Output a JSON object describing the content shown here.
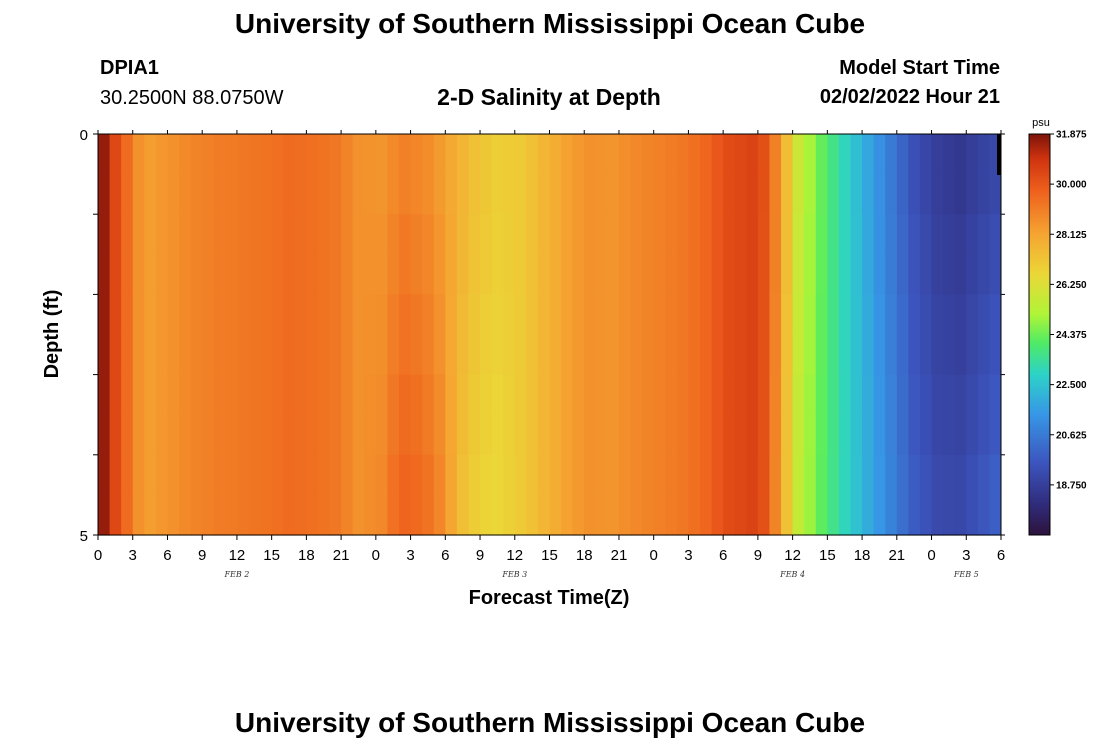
{
  "header": {
    "title": "University of Southern Mississippi Ocean Cube",
    "station_id": "DPIA1",
    "station_coords": "30.2500N  88.0750W",
    "plot_title": "2-D Salinity at Depth",
    "model_start_label": "Model Start Time",
    "model_start_value": "02/02/2022 Hour 21"
  },
  "footer": {
    "title": "University of Southern Mississippi Ocean Cube"
  },
  "chart_data": {
    "type": "heatmap",
    "xlabel": "Forecast Time(Z)",
    "ylabel": "Depth (ft)",
    "y_ticks": [
      "0",
      "5"
    ],
    "ylim": [
      0,
      5
    ],
    "x_tick_labels": [
      "0",
      "3",
      "6",
      "9",
      "12",
      "15",
      "18",
      "21",
      "0",
      "3",
      "6",
      "9",
      "12",
      "15",
      "18",
      "21",
      "0",
      "3",
      "6",
      "9",
      "12",
      "15",
      "18",
      "21",
      "0",
      "3",
      "6"
    ],
    "date_labels": [
      {
        "text": "FEB 2",
        "tick_index": 4
      },
      {
        "text": "FEB 3",
        "tick_index": 12
      },
      {
        "text": "FEB 4",
        "tick_index": 20
      },
      {
        "text": "FEB 5",
        "tick_index": 25
      }
    ],
    "colorbar": {
      "unit": "psu",
      "min": 16.875,
      "max": 31.875,
      "labels": [
        "31.875",
        "30.000",
        "28.125",
        "26.250",
        "24.375",
        "22.500",
        "20.625",
        "18.750"
      ]
    },
    "depth_layers": 10,
    "time_steps": 79,
    "time_step_hours": 1,
    "salinity_profile_keyframes": [
      [
        0,
        31.5
      ],
      [
        1,
        30.4
      ],
      [
        2,
        29.5
      ],
      [
        3,
        28.6
      ],
      [
        4,
        28.3
      ],
      [
        6,
        28.6
      ],
      [
        8,
        28.9
      ],
      [
        10,
        29.1
      ],
      [
        12,
        29.2
      ],
      [
        14,
        29.3
      ],
      [
        16,
        29.5
      ],
      [
        18,
        29.4
      ],
      [
        20,
        29.2
      ],
      [
        22,
        28.6
      ],
      [
        24,
        28.5
      ],
      [
        26,
        29.0
      ],
      [
        28,
        28.7
      ],
      [
        30,
        28.0
      ],
      [
        32,
        27.3
      ],
      [
        34,
        26.9
      ],
      [
        36,
        27.0
      ],
      [
        38,
        27.6
      ],
      [
        40,
        28.2
      ],
      [
        42,
        28.6
      ],
      [
        44,
        28.5
      ],
      [
        46,
        28.8
      ],
      [
        48,
        29.0
      ],
      [
        50,
        29.2
      ],
      [
        52,
        29.6
      ],
      [
        54,
        30.3
      ],
      [
        56,
        30.5
      ],
      [
        57,
        30.2
      ],
      [
        58,
        29.0
      ],
      [
        59,
        27.4
      ],
      [
        60,
        25.8
      ],
      [
        62,
        24.3
      ],
      [
        64,
        23.0
      ],
      [
        66,
        21.8
      ],
      [
        68,
        20.6
      ],
      [
        70,
        19.4
      ],
      [
        72,
        18.7
      ],
      [
        74,
        18.5
      ],
      [
        76,
        18.9
      ],
      [
        78,
        19.3
      ]
    ],
    "depth_anomaly_keyframes": [
      [
        0,
        0.0
      ],
      [
        22,
        0.0
      ],
      [
        24,
        0.3
      ],
      [
        25,
        0.6
      ],
      [
        27,
        0.7
      ],
      [
        29,
        0.5
      ],
      [
        31,
        -0.3
      ],
      [
        33,
        -0.4
      ],
      [
        36,
        0.0
      ],
      [
        56,
        0.0
      ],
      [
        60,
        -0.2
      ],
      [
        78,
        0.8
      ]
    ]
  }
}
